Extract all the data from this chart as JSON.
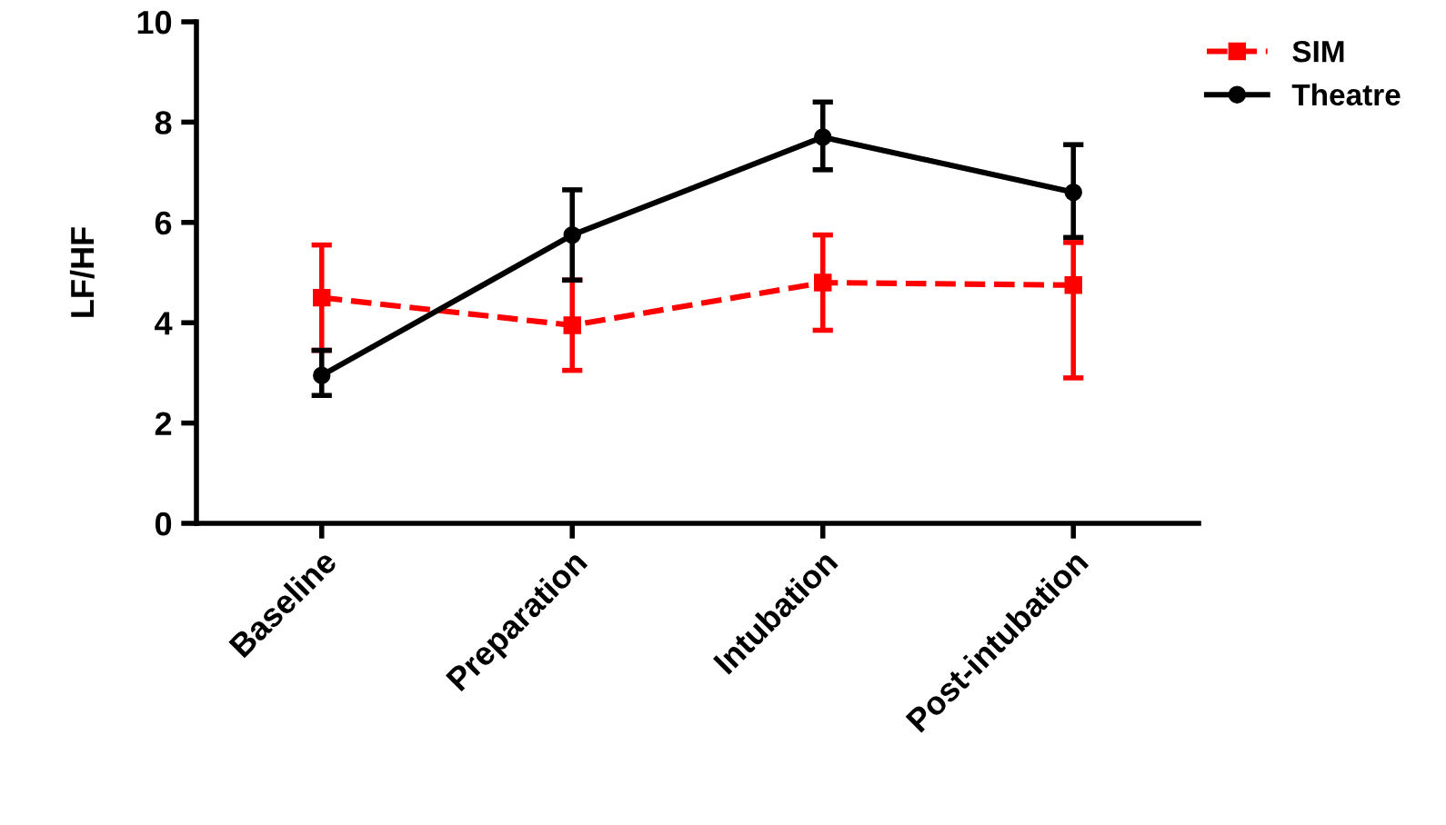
{
  "chart_data": {
    "type": "line",
    "ylabel": "LF/HF",
    "categories": [
      "Baseline",
      "Preparation",
      "Intubation",
      "Post-intubation"
    ],
    "series": [
      {
        "name": "SIM",
        "color": "#ff0000",
        "marker": "square",
        "line_style": "dashed",
        "values": [
          4.5,
          3.95,
          4.8,
          4.75
        ],
        "errors": [
          [
            3.45,
            5.55
          ],
          [
            3.05,
            4.85
          ],
          [
            3.85,
            5.75
          ],
          [
            2.9,
            5.6
          ]
        ]
      },
      {
        "name": "Theatre",
        "color": "#000000",
        "marker": "circle",
        "line_style": "solid",
        "values": [
          2.95,
          5.75,
          7.7,
          6.6
        ],
        "errors": [
          [
            2.55,
            3.45
          ],
          [
            4.85,
            6.65
          ],
          [
            7.05,
            8.4
          ],
          [
            5.7,
            7.55
          ]
        ]
      }
    ],
    "ylim": [
      0,
      10
    ],
    "yticks": [
      0,
      2,
      4,
      6,
      8,
      10
    ],
    "grid": false,
    "legend": "top right"
  }
}
